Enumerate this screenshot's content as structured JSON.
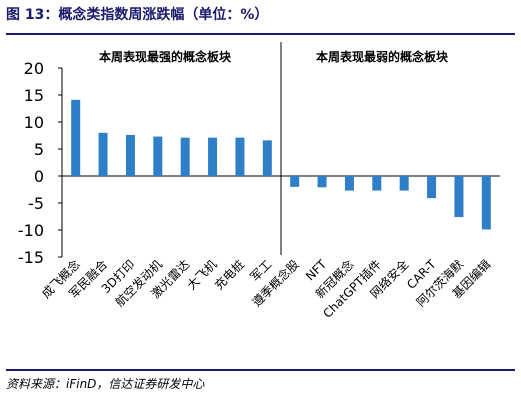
{
  "figure_title": "图 13：概念类指数周涨跌幅（单位：%）",
  "source": "资料来源：iFinD，信达证券研发中心",
  "colors": {
    "bar": "#2E7FC8",
    "rule": "#1a1a6e",
    "divider": "#000000"
  },
  "chart_data": {
    "type": "bar",
    "panels": [
      "本周表现最强的概念板块",
      "本周表现最弱的概念板块"
    ],
    "categories": [
      "成飞概念",
      "军民融合",
      "3D打印",
      "航空发动机",
      "激光雷达",
      "大飞机",
      "充电桩",
      "军工",
      "遵季概念股",
      "NFT",
      "新冠概念",
      "ChatGPT插件",
      "网络安全",
      "CAR-T",
      "阿尔茨海默",
      "基因编辑"
    ],
    "values": [
      14.1,
      8.0,
      7.6,
      7.3,
      7.1,
      7.1,
      7.1,
      6.6,
      -2.0,
      -2.1,
      -2.7,
      -2.7,
      -2.7,
      -4.1,
      -7.6,
      -9.9
    ],
    "ylim": [
      -15,
      20
    ],
    "yticks": [
      -15,
      -10,
      -5,
      0,
      5,
      10,
      15,
      20
    ],
    "title": "",
    "xlabel": "",
    "ylabel": ""
  }
}
